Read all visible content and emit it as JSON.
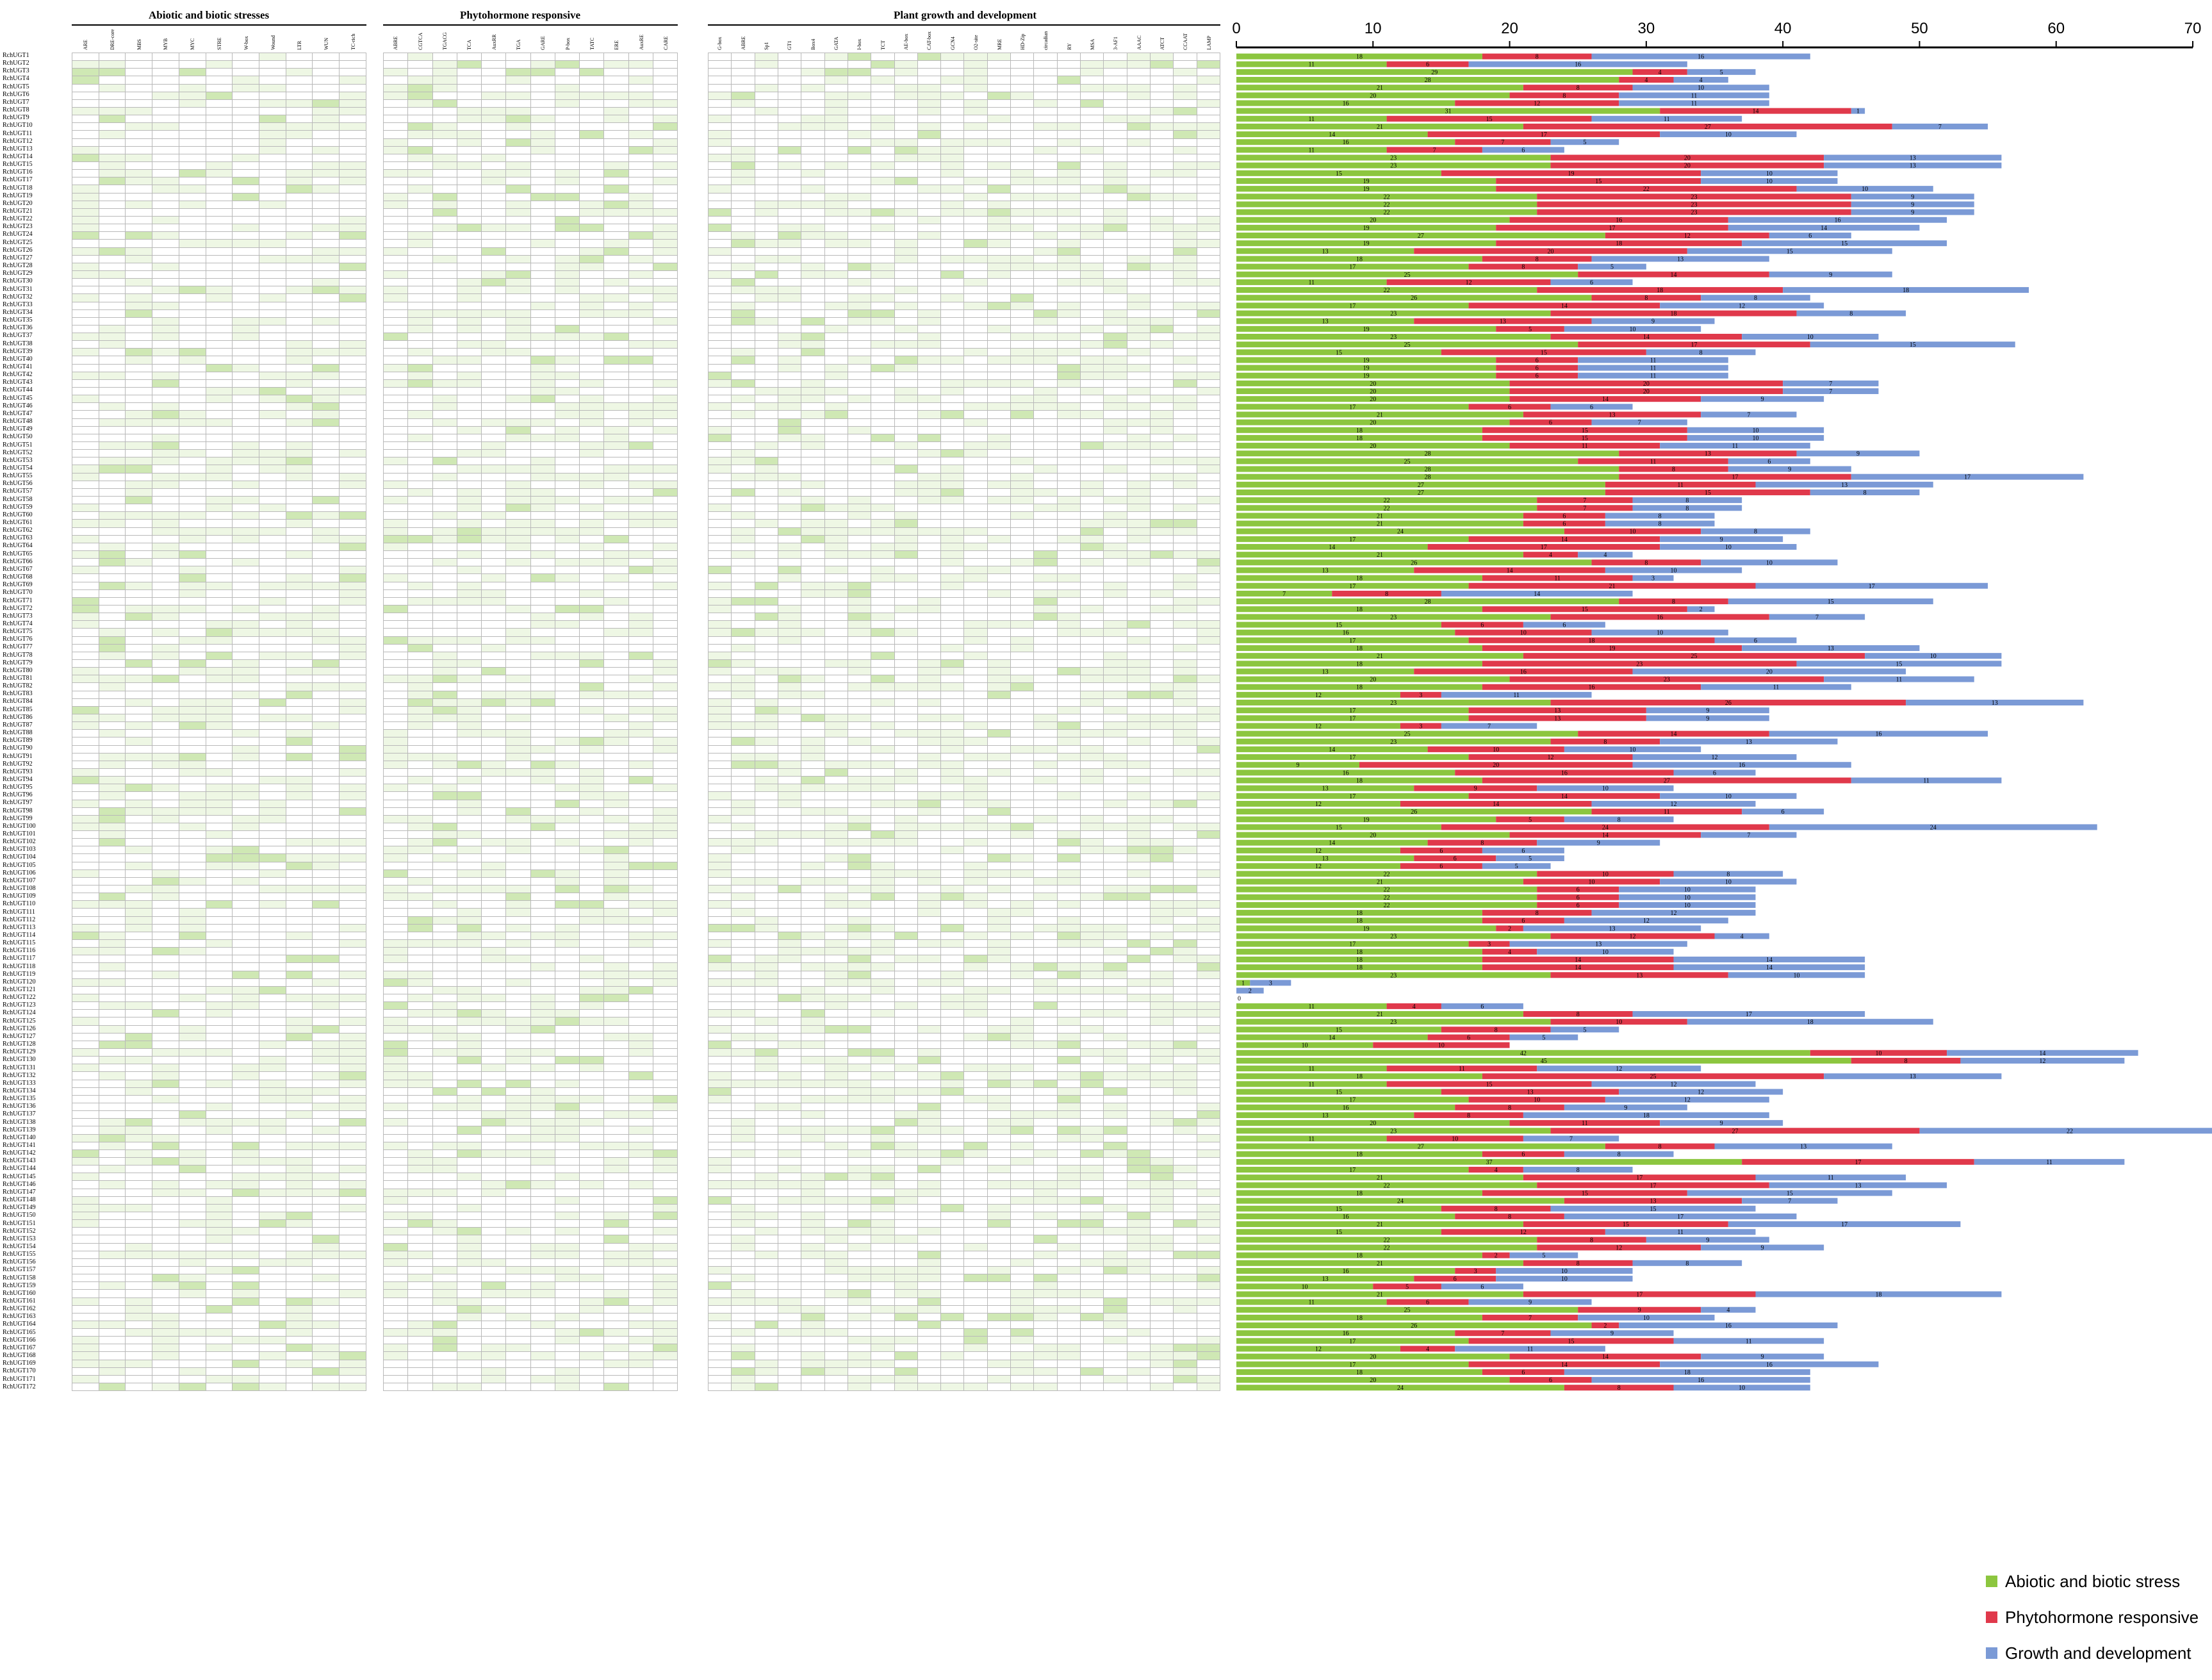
{
  "panels": [
    {
      "title": "Abiotic and biotic stresses",
      "columns": [
        "ARE",
        "DRE-core",
        "MBS",
        "MYB",
        "MYC",
        "STRE",
        "W-box",
        "Wound",
        "LTR",
        "WUN",
        "TC-rich"
      ]
    },
    {
      "title": "Phytohormone responsive",
      "columns": [
        "ABRE",
        "CGTCA",
        "TGACG",
        "TCA",
        "AuxRR",
        "TGA",
        "GARE",
        "P-box",
        "TATC",
        "ERE",
        "AuxRE",
        "CARE"
      ]
    },
    {
      "title": "Plant growth and development",
      "columns": [
        "G-box",
        "ABRE",
        "Sp1",
        "GT1",
        "Box4",
        "GATA",
        "I-box",
        "TCT",
        "AE-box",
        "CAT-box",
        "GCN4",
        "O2-site",
        "MRE",
        "HD-Zip",
        "circadian",
        "RY",
        "MSA",
        "3-AF1",
        "AAAC",
        "ATCT",
        "CCAAT",
        "LAMP"
      ]
    }
  ],
  "genes": [
    "RchUGT1",
    "RchUGT2",
    "RchUGT3",
    "RchUGT4",
    "RchUGT5",
    "RchUGT6",
    "RchUGT7",
    "RchUGT8",
    "RchUGT9",
    "RchUGT10",
    "RchUGT11",
    "RchUGT12",
    "RchUGT13",
    "RchUGT14",
    "RchUGT15",
    "RchUGT16",
    "RchUGT17",
    "RchUGT18",
    "RchUGT19",
    "RchUGT20",
    "RchUGT21",
    "RchUGT22",
    "RchUGT23",
    "RchUGT24",
    "RchUGT25",
    "RchUGT26",
    "RchUGT27",
    "RchUGT28",
    "RchUGT29",
    "RchUGT30",
    "RchUGT31",
    "RchUGT32",
    "RchUGT33",
    "RchUGT34",
    "RchUGT35",
    "RchUGT36",
    "RchUGT37",
    "RchUGT38",
    "RchUGT39",
    "RchUGT40",
    "RchUGT41",
    "RchUGT42",
    "RchUGT43",
    "RchUGT44",
    "RchUGT45",
    "RchUGT46",
    "RchUGT47",
    "RchUGT48",
    "RchUGT49",
    "RchUGT50",
    "RchUGT51",
    "RchUGT52",
    "RchUGT53",
    "RchUGT54",
    "RchUGT55",
    "RchUGT56",
    "RchUGT57",
    "RchUGT58",
    "RchUGT59",
    "RchUGT60",
    "RchUGT61",
    "RchUGT62",
    "RchUGT63",
    "RchUGT64",
    "RchUGT65",
    "RchUGT66",
    "RchUGT67",
    "RchUGT68",
    "RchUGT69",
    "RchUGT70",
    "RchUGT71",
    "RchUGT72",
    "RchUGT73",
    "RchUGT74",
    "RchUGT75",
    "RchUGT76",
    "RchUGT77",
    "RchUGT78",
    "RchUGT79",
    "RchUGT80",
    "RchUGT81",
    "RchUGT82",
    "RchUGT83",
    "RchUGT84",
    "RchUGT85",
    "RchUGT86",
    "RchUGT87",
    "RchUGT88",
    "RchUGT89",
    "RchUGT90",
    "RchUGT91",
    "RchUGT92",
    "RchUGT93",
    "RchUGT94",
    "RchUGT95",
    "RchUGT96",
    "RchUGT97",
    "RchUGT98",
    "RchUGT99",
    "RchUGT100",
    "RchUGT101",
    "RchUGT102",
    "RchUGT103",
    "RchUGT104",
    "RchUGT105",
    "RchUGT106",
    "RchUGT107",
    "RchUGT108",
    "RchUGT109",
    "RchUGT110",
    "RchUGT111",
    "RchUGT112",
    "RchUGT113",
    "RchUGT114",
    "RchUGT115",
    "RchUGT116",
    "RchUGT117",
    "RchUGT118",
    "RchUGT119",
    "RchUGT120",
    "RchUGT121",
    "RchUGT122",
    "RchUGT123",
    "RchUGT124",
    "RchUGT125",
    "RchUGT126",
    "RchUGT127",
    "RchUGT128",
    "RchUGT129",
    "RchUGT130",
    "RchUGT131",
    "RchUGT132",
    "RchUGT133",
    "RchUGT134",
    "RchUGT135",
    "RchUGT136",
    "RchUGT137",
    "RchUGT138",
    "RchUGT139",
    "RchUGT140",
    "RchUGT141",
    "RchUGT142",
    "RchUGT143",
    "RchUGT144",
    "RchUGT145",
    "RchUGT146",
    "RchUGT147",
    "RchUGT148",
    "RchUGT149",
    "RchUGT150",
    "RchUGT151",
    "RchUGT152",
    "RchUGT153",
    "RchUGT154",
    "RchUGT155",
    "RchUGT156",
    "RchUGT157",
    "RchUGT158",
    "RchUGT159",
    "RchUGT160",
    "RchUGT161",
    "RchUGT162",
    "RchUGT163",
    "RchUGT164",
    "RchUGT165",
    "RchUGT166",
    "RchUGT167",
    "RchUGT168",
    "RchUGT169",
    "RchUGT170",
    "RchUGT171",
    "RchUGT172"
  ],
  "colors": {
    "abiotic": "#8cc63f",
    "phyto": "#e0394b",
    "growth": "#7b9ad6",
    "heat_light": "#eef7e4",
    "heat_mid": "#cfe8b4",
    "heat_dark": "#5faa3a"
  },
  "chart_data": {
    "type": "bar",
    "orientation": "horizontal",
    "stacked": true,
    "xlim": [
      0,
      70
    ],
    "xticks": [
      0,
      10,
      20,
      30,
      40,
      50,
      60,
      70
    ],
    "legend": [
      "Abiotic and biotic stress",
      "Phytohormone responsive",
      "Growth and development"
    ],
    "legend_position": "bottom-right",
    "categories": "genes",
    "series": [
      {
        "name": "Abiotic and biotic stress",
        "values": [
          18,
          11,
          29,
          28,
          21,
          20,
          16,
          31,
          11,
          21,
          14,
          16,
          11,
          23,
          23,
          15,
          19,
          19,
          22,
          22,
          22,
          20,
          19,
          27,
          19,
          13,
          18,
          17,
          25,
          11,
          22,
          26,
          17,
          23,
          13,
          19,
          23,
          25,
          15,
          19,
          19,
          19,
          20,
          20,
          20,
          17,
          21,
          20,
          18,
          18,
          20,
          28,
          25,
          28,
          28,
          27,
          27,
          22,
          22,
          21,
          21,
          24,
          17,
          14,
          21,
          26,
          13,
          18,
          17,
          7,
          28,
          18,
          23,
          15,
          16,
          17,
          18,
          21,
          18,
          13,
          20,
          18,
          12,
          23,
          17,
          17,
          12,
          25,
          23,
          14,
          17,
          9,
          16,
          18,
          13,
          17,
          12,
          26,
          19,
          15,
          20,
          14,
          12,
          13,
          12,
          22,
          21,
          22,
          22,
          22,
          18,
          18,
          19,
          23,
          17,
          18,
          18,
          18,
          23,
          1,
          0,
          0,
          11,
          21,
          23,
          15,
          14,
          10,
          42,
          45,
          11,
          18,
          11,
          15,
          17,
          16,
          13,
          20,
          23,
          11,
          27,
          18,
          37,
          17,
          21,
          22,
          18,
          24,
          15,
          16,
          21,
          15,
          22,
          22,
          18,
          21,
          16,
          13,
          10,
          21,
          11,
          25,
          18,
          26,
          16,
          17,
          12,
          20,
          17,
          18,
          20,
          24
        ],
        "labels_visible": true
      },
      {
        "name": "Phytohormone responsive",
        "values": [
          8,
          6,
          4,
          4,
          8,
          8,
          12,
          14,
          15,
          27,
          17,
          7,
          7,
          20,
          20,
          19,
          15,
          22,
          23,
          23,
          23,
          16,
          17,
          12,
          18,
          20,
          8,
          8,
          14,
          12,
          18,
          8,
          14,
          18,
          13,
          5,
          14,
          17,
          15,
          6,
          6,
          6,
          20,
          20,
          14,
          6,
          13,
          6,
          15,
          15,
          11,
          13,
          11,
          8,
          17,
          11,
          15,
          7,
          7,
          6,
          6,
          10,
          14,
          17,
          4,
          8,
          14,
          11,
          21,
          8,
          8,
          15,
          16,
          6,
          10,
          18,
          19,
          25,
          23,
          16,
          23,
          16,
          3,
          26,
          13,
          13,
          3,
          14,
          8,
          10,
          12,
          20,
          16,
          27,
          9,
          14,
          14,
          11,
          5,
          24,
          14,
          8,
          6,
          6,
          6,
          10,
          10,
          6,
          6,
          6,
          8,
          6,
          2,
          12,
          3,
          4,
          14,
          14,
          13,
          0,
          0,
          0,
          4,
          8,
          10,
          8,
          6,
          10,
          10,
          8,
          11,
          25,
          15,
          13,
          10,
          8,
          8,
          11,
          27,
          10,
          8,
          6,
          17,
          4,
          17,
          17,
          15,
          13,
          8,
          8,
          15,
          12,
          8,
          12,
          2,
          8,
          3,
          6,
          5,
          17,
          6,
          9,
          7,
          2,
          7,
          15,
          4,
          14,
          14,
          6,
          6,
          8
        ],
        "labels_visible": true
      },
      {
        "name": "Growth and development",
        "values": [
          16,
          16,
          5,
          4,
          10,
          11,
          11,
          1,
          11,
          7,
          10,
          5,
          6,
          13,
          13,
          10,
          10,
          10,
          9,
          9,
          9,
          16,
          14,
          6,
          15,
          15,
          13,
          5,
          9,
          6,
          18,
          8,
          12,
          8,
          9,
          10,
          10,
          15,
          8,
          11,
          11,
          11,
          7,
          7,
          9,
          6,
          7,
          7,
          10,
          10,
          11,
          9,
          6,
          9,
          17,
          13,
          8,
          8,
          8,
          8,
          8,
          8,
          9,
          10,
          4,
          10,
          10,
          3,
          17,
          14,
          15,
          2,
          7,
          6,
          10,
          6,
          13,
          10,
          15,
          20,
          11,
          11,
          11,
          13,
          9,
          9,
          7,
          16,
          13,
          10,
          12,
          16,
          6,
          11,
          10,
          10,
          12,
          6,
          8,
          24,
          7,
          9,
          6,
          5,
          5,
          8,
          10,
          10,
          10,
          10,
          12,
          12,
          13,
          4,
          13,
          10,
          14,
          14,
          10,
          3,
          2,
          0,
          6,
          17,
          18,
          5,
          5,
          0,
          14,
          12,
          12,
          13,
          12,
          12,
          12,
          9,
          18,
          9,
          22,
          7,
          13,
          8,
          11,
          8,
          11,
          13,
          15,
          7,
          15,
          17,
          17,
          11,
          9,
          9,
          5,
          8,
          10,
          10,
          6,
          18,
          9,
          4,
          10,
          16,
          9,
          11,
          11,
          9,
          16,
          18,
          16,
          10
        ],
        "labels_visible": true
      }
    ]
  }
}
